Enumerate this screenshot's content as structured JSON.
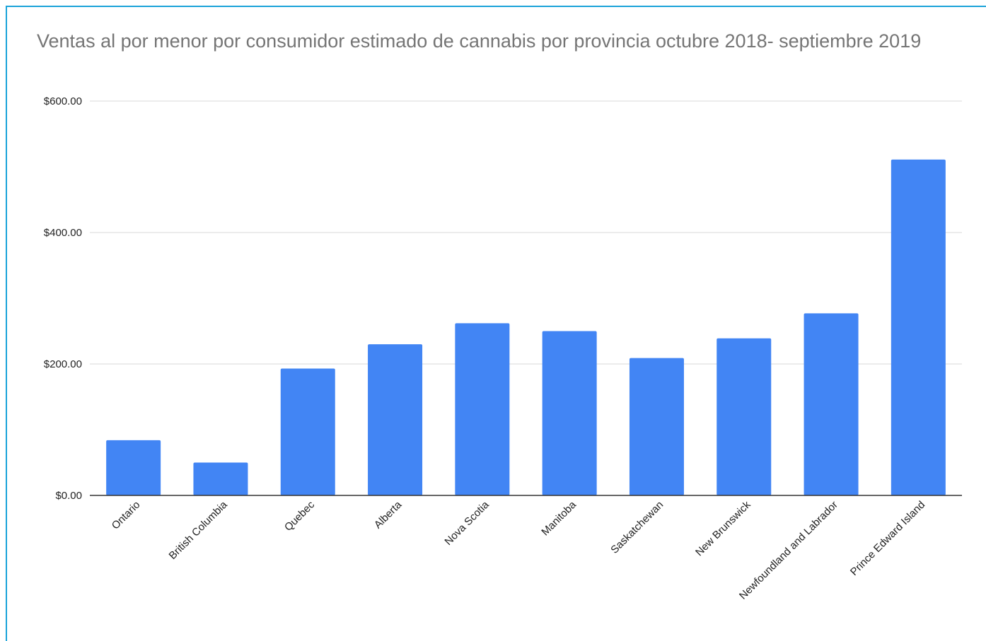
{
  "chart_data": {
    "type": "bar",
    "title": "Ventas al por menor por consumidor estimado de cannabis por provincia octubre 2018- septiembre 2019",
    "xlabel": "",
    "ylabel": "",
    "categories": [
      "Ontario",
      "British Columbia",
      "Quebec",
      "Alberta",
      "Nova Scotia",
      "Manitoba",
      "Saskatchewan",
      "New Brunswick",
      "Newfoundland and Labrador",
      "Prince Edward Island"
    ],
    "values": [
      84,
      50,
      193,
      230,
      262,
      250,
      209,
      239,
      277,
      511
    ],
    "ylim": [
      0,
      600
    ],
    "yticks": [
      0,
      200,
      400,
      600
    ],
    "ytick_labels": [
      "$0.00",
      "$200.00",
      "$400.00",
      "$600.00"
    ],
    "grid": true,
    "legend": "none",
    "bar_color": "#4285f4",
    "grid_color": "#d9d9d9",
    "axis_color": "#333333"
  }
}
